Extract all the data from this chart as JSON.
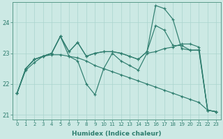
{
  "xlabel": "Humidex (Indice chaleur)",
  "ylabel": "",
  "line_color": "#2e7d6e",
  "bg_color": "#cce9e4",
  "grid_color": "#aad4ce",
  "xmin": -0.5,
  "xmax": 23.5,
  "ymin": 20.85,
  "ymax": 24.65,
  "yticks": [
    21,
    22,
    23,
    24
  ],
  "xticks": [
    0,
    1,
    2,
    3,
    4,
    5,
    6,
    7,
    8,
    9,
    10,
    11,
    12,
    13,
    14,
    15,
    16,
    17,
    18,
    19,
    20,
    21,
    22,
    23
  ],
  "lines": [
    [
      21.7,
      22.5,
      22.8,
      22.9,
      23.0,
      23.55,
      23.05,
      23.35,
      22.9,
      23.0,
      23.05,
      23.05,
      23.0,
      22.9,
      22.8,
      23.05,
      24.55,
      24.45,
      24.1,
      23.15,
      23.1,
      23.1,
      21.15,
      21.1
    ],
    [
      21.7,
      22.5,
      22.8,
      22.9,
      23.0,
      23.55,
      23.05,
      23.35,
      22.9,
      23.0,
      23.05,
      23.05,
      23.0,
      22.9,
      22.8,
      23.05,
      23.9,
      23.75,
      23.25,
      23.25,
      23.1,
      23.1,
      21.15,
      21.1
    ],
    [
      21.7,
      22.5,
      22.8,
      22.9,
      23.0,
      23.55,
      22.9,
      22.75,
      22.0,
      21.65,
      22.5,
      23.0,
      22.75,
      22.6,
      22.45,
      23.0,
      23.05,
      23.15,
      23.2,
      23.3,
      23.3,
      23.2,
      21.15,
      21.1
    ],
    [
      21.7,
      22.45,
      22.7,
      22.9,
      22.95,
      22.95,
      22.9,
      22.85,
      22.75,
      22.6,
      22.5,
      22.4,
      22.3,
      22.2,
      22.1,
      22.0,
      21.9,
      21.8,
      21.7,
      21.6,
      21.5,
      21.4,
      21.15,
      21.1
    ]
  ]
}
